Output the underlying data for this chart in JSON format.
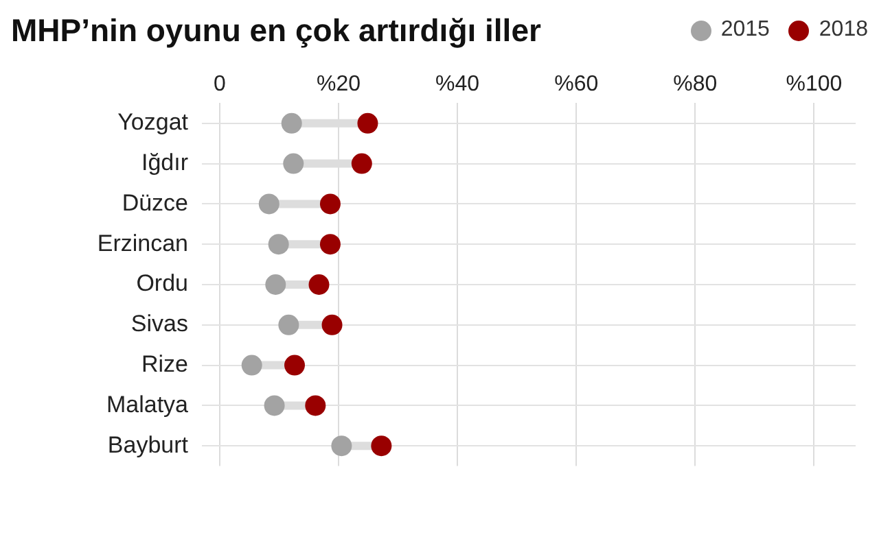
{
  "chart_data": {
    "type": "scatter",
    "orientation": "horizontal",
    "title": "MHP’nin oyunu en çok artırdığı iller",
    "categories": [
      "Yozgat",
      "Iğdır",
      "Düzce",
      "Erzincan",
      "Ordu",
      "Sivas",
      "Rize",
      "Malatya",
      "Bayburt"
    ],
    "series": [
      {
        "name": "2015",
        "color": "#a3a3a3",
        "values": [
          12.1,
          12.4,
          8.3,
          9.9,
          9.4,
          11.6,
          5.4,
          9.2,
          20.5
        ]
      },
      {
        "name": "2018",
        "color": "#990000",
        "values": [
          24.9,
          23.9,
          18.6,
          18.6,
          16.7,
          18.9,
          12.6,
          16.1,
          27.2
        ]
      }
    ],
    "xlim": [
      -3,
      107
    ],
    "xticks": [
      0,
      {
        "value": 20,
        "label": "%20"
      },
      {
        "value": 40,
        "label": "%40"
      },
      {
        "value": 60,
        "label": "%60"
      },
      {
        "value": 80,
        "label": "%80"
      },
      {
        "value": 100,
        "label": "%100"
      }
    ],
    "grid": true,
    "legend": "top right",
    "marker": "circle"
  }
}
